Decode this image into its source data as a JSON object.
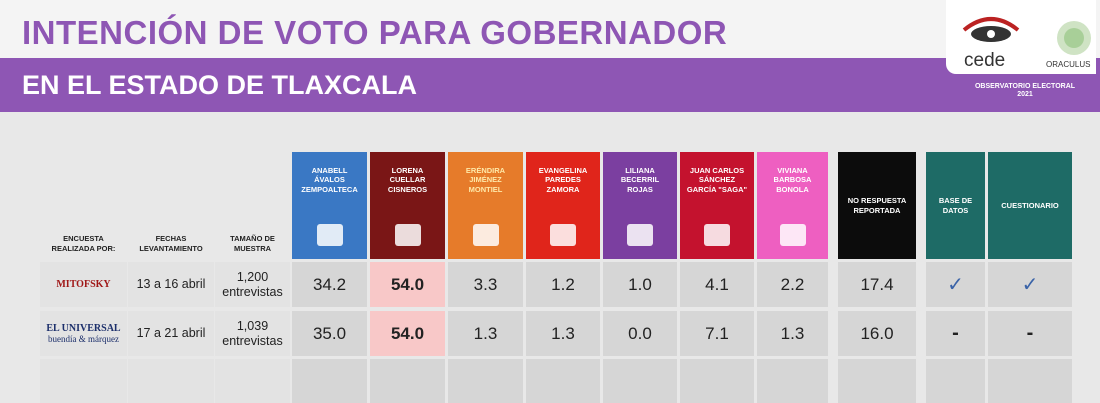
{
  "header": {
    "title": "INTENCIÓN DE VOTO PARA GOBERNADOR",
    "subtitle": "EN EL ESTADO DE TLAXCALA",
    "logos": [
      "cede",
      "ORACULUS"
    ],
    "observatory": "OBSERVATORIO ELECTORAL",
    "year": "2021"
  },
  "table": {
    "columns": [
      "ENCUESTA REALIZADA POR:",
      "FECHAS LEVANTAMIENTO",
      "TAMAÑO DE MUESTRA",
      "ANABELL ÁVALOS ZEMPOALTECA",
      "LORENA CUELLAR CISNEROS",
      "ERÉNDIRA JIMÉNEZ MONTIEL",
      "EVANGELINA PAREDES ZAMORA",
      "LILIANA BECERRIL ROJAS",
      "JUAN CARLOS SÁNCHEZ GARCÍA \"SAGA\"",
      "VIVIANA BARBOSA BONOLA",
      "NO RESPUESTA REPORTADA",
      "BASE DE DATOS",
      "CUESTIONARIO"
    ],
    "rows": [
      [
        [
          "MITOFSKY"
        ],
        "13 a 16 abril",
        "1,200 entrevistas",
        "34.2",
        "54.0",
        "3.3",
        "1.2",
        "1.0",
        "4.1",
        "2.2",
        "17.4",
        "✓",
        "✓"
      ],
      [
        [
          "EL UNIVERSAL",
          "buendía & márquez"
        ],
        "17 a 21 abril",
        "1,039 entrevistas",
        "35.0",
        "54.0",
        "1.3",
        "1.3",
        "0.0",
        "7.1",
        "1.3",
        "16.0",
        "-",
        "-"
      ]
    ]
  }
}
